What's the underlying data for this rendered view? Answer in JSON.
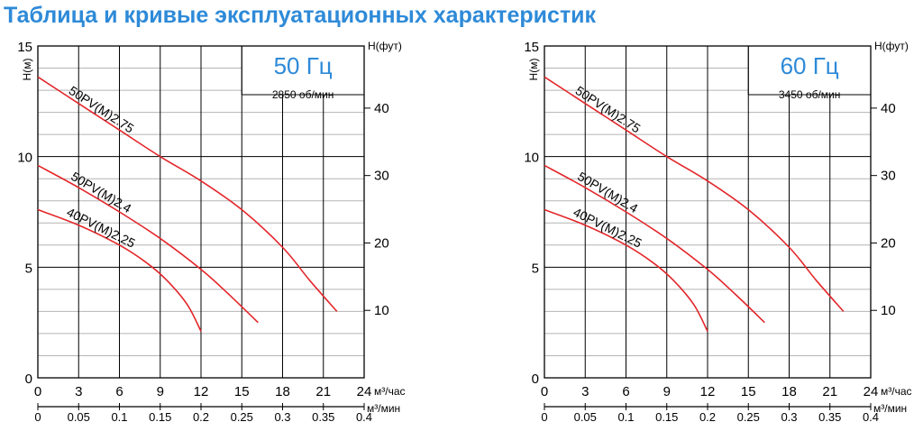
{
  "page": {
    "title": "Таблица и кривые эксплуатационных характеристик"
  },
  "colors": {
    "title": "#2e8ad8",
    "curve": "#e3262a",
    "grid_major": "#000000",
    "grid_minor": "#b4b4b4",
    "badge_text": "#2e8ad8"
  },
  "chart_data": [
    {
      "type": "line",
      "frequency_label": "50 Гц",
      "speed_label": "2850 об/мин",
      "ylabel": "Н(м)",
      "ylabel_right": "Н(фут)",
      "xlabel": "м³/час",
      "xlabel_secondary": "м³/мин",
      "xlim": [
        0,
        24
      ],
      "ylim": [
        0,
        15
      ],
      "x_ticks": [
        "0",
        "3",
        "6",
        "9",
        "12",
        "15",
        "18",
        "21",
        "24"
      ],
      "x_ticks_secondary": [
        "0",
        "0.05",
        "0.1",
        "0.15",
        "0.2",
        "0.25",
        "0.3",
        "0.35",
        "0.4"
      ],
      "y_ticks": [
        "0",
        "5",
        "10",
        "15"
      ],
      "y_ticks_right": [
        "10",
        "20",
        "30",
        "40"
      ],
      "grid": true,
      "series": [
        {
          "name": "50PV(M)2.75",
          "x": [
            0,
            3,
            6,
            9,
            12,
            15,
            18,
            20,
            22
          ],
          "y": [
            13.6,
            12.4,
            11.2,
            10.0,
            8.9,
            7.6,
            5.9,
            4.4,
            3.0
          ]
        },
        {
          "name": "50PV(M)2.4",
          "x": [
            0,
            3,
            6,
            9,
            12,
            14,
            16.2
          ],
          "y": [
            9.6,
            8.6,
            7.5,
            6.3,
            4.9,
            3.8,
            2.5
          ]
        },
        {
          "name": "40PV(M)2.25",
          "x": [
            0,
            3,
            6,
            8,
            9.5,
            11,
            12
          ],
          "y": [
            7.6,
            6.9,
            6.0,
            5.2,
            4.4,
            3.3,
            2.1
          ]
        }
      ]
    },
    {
      "type": "line",
      "frequency_label": "60 Гц",
      "speed_label": "3450 об/мин",
      "ylabel": "Н(м)",
      "ylabel_right": "Н(фут)",
      "xlabel": "м³/час",
      "xlabel_secondary": "м³/мин",
      "xlim": [
        0,
        24
      ],
      "ylim": [
        0,
        15
      ],
      "x_ticks": [
        "0",
        "3",
        "6",
        "9",
        "12",
        "15",
        "18",
        "21",
        "24"
      ],
      "x_ticks_secondary": [
        "0",
        "0.05",
        "0.1",
        "0.15",
        "0.2",
        "0.25",
        "0.3",
        "0.35",
        "0.4"
      ],
      "y_ticks": [
        "0",
        "5",
        "10",
        "15"
      ],
      "y_ticks_right": [
        "10",
        "20",
        "30",
        "40"
      ],
      "grid": true,
      "series": [
        {
          "name": "50PV(M)2.75",
          "x": [
            0,
            3,
            6,
            9,
            12,
            15,
            18,
            20,
            22
          ],
          "y": [
            13.6,
            12.4,
            11.2,
            10.0,
            8.9,
            7.6,
            5.9,
            4.4,
            3.0
          ]
        },
        {
          "name": "50PV(M)2.4",
          "x": [
            0,
            3,
            6,
            9,
            12,
            14,
            16.2
          ],
          "y": [
            9.6,
            8.6,
            7.5,
            6.3,
            4.9,
            3.8,
            2.5
          ]
        },
        {
          "name": "40PV(M)2.25",
          "x": [
            0,
            3,
            6,
            8,
            9.5,
            11,
            12
          ],
          "y": [
            7.6,
            6.9,
            6.0,
            5.2,
            4.4,
            3.3,
            2.1
          ]
        }
      ]
    }
  ]
}
